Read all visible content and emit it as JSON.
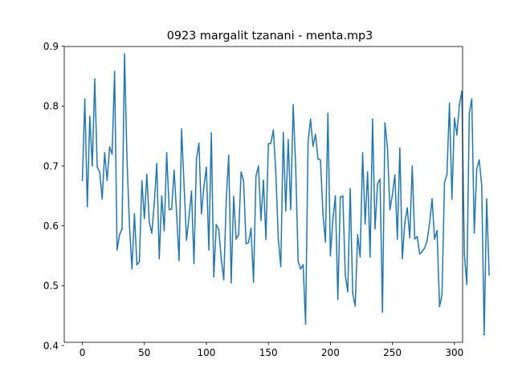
{
  "chart_data": {
    "type": "line",
    "title": "0923 margalit tzanani - menta.mp3",
    "xlabel": "",
    "ylabel": "",
    "xlim": [
      -14.6,
      306.6
    ],
    "ylim": [
      0.4054,
      0.8996
    ],
    "x_ticks": [
      0,
      50,
      100,
      150,
      200,
      250,
      300
    ],
    "x_tick_labels": [
      "0",
      "50",
      "100",
      "150",
      "200",
      "250",
      "300"
    ],
    "y_ticks": [
      0.4,
      0.5,
      0.6,
      0.7,
      0.8,
      0.9
    ],
    "y_tick_labels": [
      "0.4",
      "0.5",
      "0.6",
      "0.7",
      "0.8",
      "0.9"
    ],
    "grid": false,
    "line_color": "#1f77b4",
    "series": [
      {
        "values": [
          0.676,
          0.812,
          0.632,
          0.783,
          0.7,
          0.845,
          0.698,
          0.69,
          0.645,
          0.722,
          0.676,
          0.732,
          0.72,
          0.858,
          0.56,
          0.585,
          0.595,
          0.887,
          0.71,
          0.6,
          0.528,
          0.62,
          0.535,
          0.54,
          0.675,
          0.612,
          0.686,
          0.605,
          0.588,
          0.638,
          0.704,
          0.545,
          0.65,
          0.592,
          0.722,
          0.627,
          0.628,
          0.693,
          0.62,
          0.542,
          0.762,
          0.668,
          0.576,
          0.615,
          0.658,
          0.537,
          0.712,
          0.738,
          0.62,
          0.665,
          0.698,
          0.56,
          0.755,
          0.515,
          0.602,
          0.594,
          0.545,
          0.51,
          0.642,
          0.718,
          0.505,
          0.649,
          0.578,
          0.585,
          0.69,
          0.675,
          0.57,
          0.572,
          0.596,
          0.506,
          0.683,
          0.7,
          0.609,
          0.676,
          0.578,
          0.737,
          0.738,
          0.76,
          0.69,
          0.578,
          0.532,
          0.756,
          0.625,
          0.744,
          0.627,
          0.802,
          0.7,
          0.54,
          0.528,
          0.535,
          0.436,
          0.74,
          0.778,
          0.733,
          0.753,
          0.712,
          0.71,
          0.62,
          0.573,
          0.788,
          0.55,
          0.61,
          0.65,
          0.477,
          0.648,
          0.65,
          0.518,
          0.49,
          0.662,
          0.487,
          0.466,
          0.585,
          0.548,
          0.722,
          0.603,
          0.69,
          0.548,
          0.778,
          0.595,
          0.67,
          0.678,
          0.456,
          0.772,
          0.731,
          0.627,
          0.652,
          0.685,
          0.578,
          0.73,
          0.545,
          0.605,
          0.63,
          0.58,
          0.7,
          0.578,
          0.582,
          0.553,
          0.557,
          0.563,
          0.575,
          0.605,
          0.645,
          0.578,
          0.592,
          0.465,
          0.485,
          0.672,
          0.686,
          0.805,
          0.645,
          0.78,
          0.752,
          0.802,
          0.825,
          0.553,
          0.502,
          0.788,
          0.812,
          0.588,
          0.695,
          0.71,
          0.668,
          0.418,
          0.645,
          0.518
        ]
      }
    ]
  }
}
